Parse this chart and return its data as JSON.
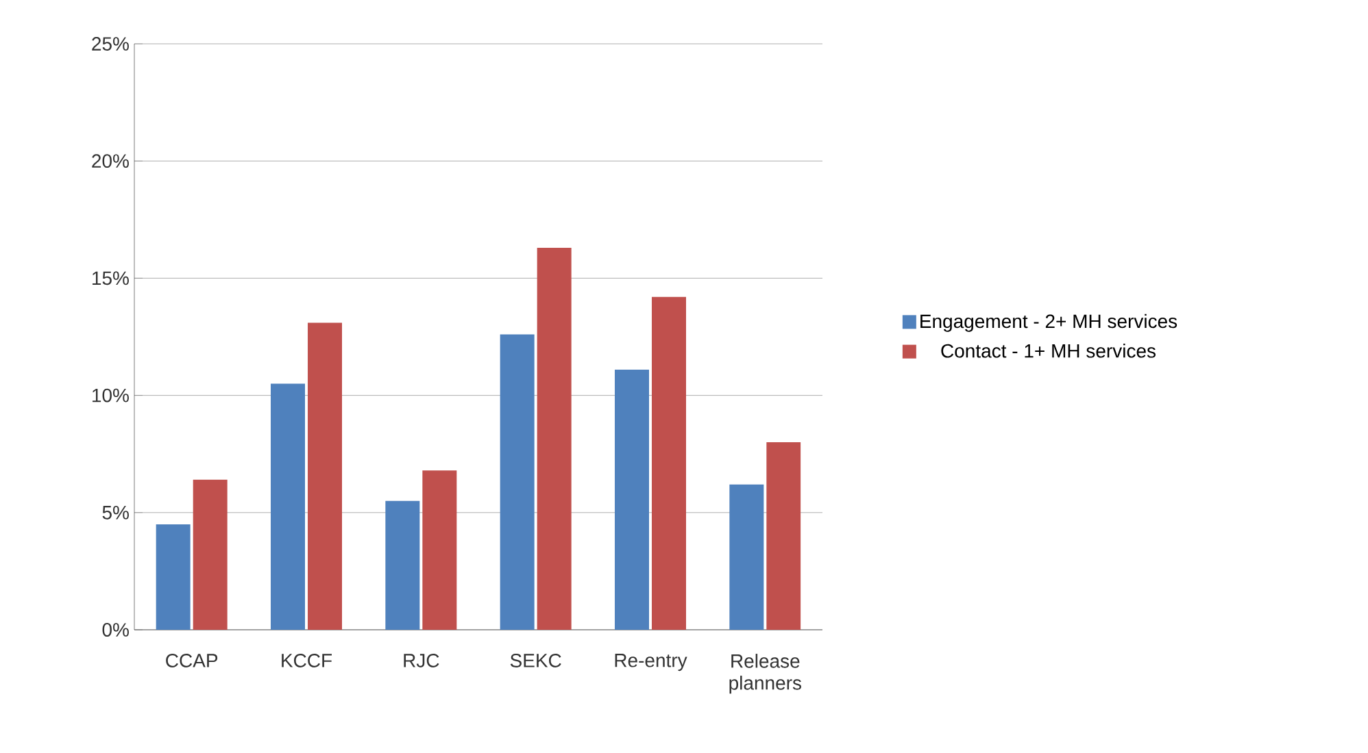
{
  "chart_data": {
    "type": "bar",
    "categories": [
      "CCAP",
      "KCCF",
      "RJC",
      "SEKC",
      "Re-entry",
      "Release planners"
    ],
    "series": [
      {
        "name": "Engagement - 2+ MH services",
        "color": "#4f81bd",
        "values": [
          4.5,
          10.5,
          5.5,
          12.6,
          11.1,
          6.2
        ]
      },
      {
        "name": "Contact - 1+ MH services",
        "color": "#c0504d",
        "values": [
          6.4,
          13.1,
          6.8,
          16.3,
          14.2,
          8.0
        ]
      }
    ],
    "ylim": [
      0,
      25
    ],
    "yticks": [
      {
        "value": 0,
        "label": "0%"
      },
      {
        "value": 5,
        "label": "5%"
      },
      {
        "value": 10,
        "label": "10%"
      },
      {
        "value": 15,
        "label": "15%"
      },
      {
        "value": 20,
        "label": "20%"
      },
      {
        "value": 25,
        "label": "25%"
      }
    ],
    "grid": "y",
    "legend": "right"
  }
}
